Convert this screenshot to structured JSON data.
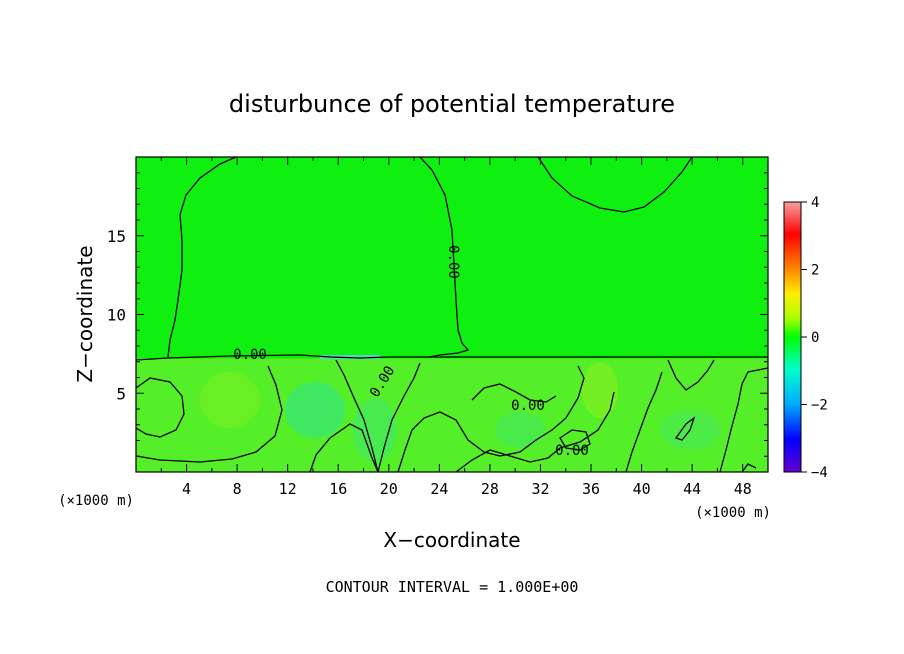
{
  "chart_data": {
    "type": "heatmap",
    "title": "disturbunce of potential temperature",
    "xlabel": "X−coordinate",
    "ylabel": "Z−coordinate",
    "x_unit": "(×1000 m)",
    "y_unit": "(×1000 m)",
    "xlim": [
      0,
      50
    ],
    "ylim": [
      0,
      20
    ],
    "x_ticks": [
      "4",
      "8",
      "12",
      "16",
      "20",
      "24",
      "28",
      "32",
      "36",
      "40",
      "44",
      "48"
    ],
    "y_ticks": [
      "5",
      "10",
      "15"
    ],
    "colorbar": {
      "min": -4,
      "max": 4,
      "ticks": [
        "4",
        "2",
        "0",
        "−2",
        "−4"
      ],
      "colors": [
        "#f6a0a0",
        "#ff0000",
        "#ff8800",
        "#ffee00",
        "#aaff00",
        "#00ff00",
        "#00ffcc",
        "#00aaff",
        "#0000ff",
        "#6600cc"
      ]
    },
    "field": {
      "background_value": 0.0,
      "lower_layer_top_z": 7.2,
      "lower_layer_value": 0.3,
      "cool_patches": [
        {
          "x": 14,
          "z": 4.5,
          "value": -0.4
        },
        {
          "x": 19,
          "z": 3.0,
          "value": -0.3
        },
        {
          "x": 30,
          "z": 3.5,
          "value": -0.2
        }
      ]
    },
    "contour_labels": [
      "0.00",
      "0.00",
      "0.00",
      "0.00",
      "0.00"
    ],
    "annotation": "CONTOUR INTERVAL = 1.000E+00"
  }
}
